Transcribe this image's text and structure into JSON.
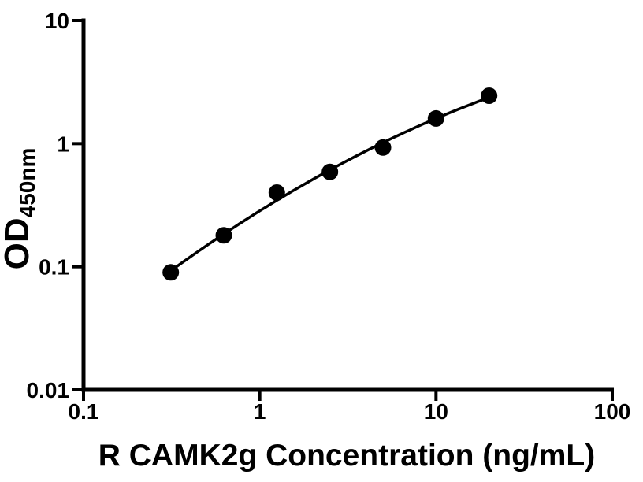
{
  "chart_data": {
    "type": "scatter",
    "xlabel": "R CAMK2g Concentration (ng/mL)",
    "ylabel": "OD450nm",
    "ylabel_main": "OD",
    "ylabel_sub": "450nm",
    "x_scale": "log",
    "y_scale": "log",
    "xlim": [
      0.1,
      100
    ],
    "ylim": [
      0.01,
      10
    ],
    "x_ticks": [
      {
        "value": 0.1,
        "label": "0.1"
      },
      {
        "value": 1,
        "label": "1"
      },
      {
        "value": 10,
        "label": "10"
      },
      {
        "value": 100,
        "label": "100"
      }
    ],
    "y_ticks": [
      {
        "value": 0.01,
        "label": "0.01"
      },
      {
        "value": 0.1,
        "label": "0.1"
      },
      {
        "value": 1,
        "label": "1"
      },
      {
        "value": 10,
        "label": "10"
      }
    ],
    "points": [
      {
        "x": 0.3125,
        "y": 0.09
      },
      {
        "x": 0.625,
        "y": 0.18
      },
      {
        "x": 1.25,
        "y": 0.4
      },
      {
        "x": 2.5,
        "y": 0.59
      },
      {
        "x": 5,
        "y": 0.93
      },
      {
        "x": 10,
        "y": 1.6
      },
      {
        "x": 20,
        "y": 2.45
      }
    ],
    "curve_style": "smooth fit through points",
    "grid": false,
    "legend": null,
    "marker_color": "#000000",
    "line_color": "#000000",
    "axis_color": "#000000",
    "background": "#ffffff"
  }
}
